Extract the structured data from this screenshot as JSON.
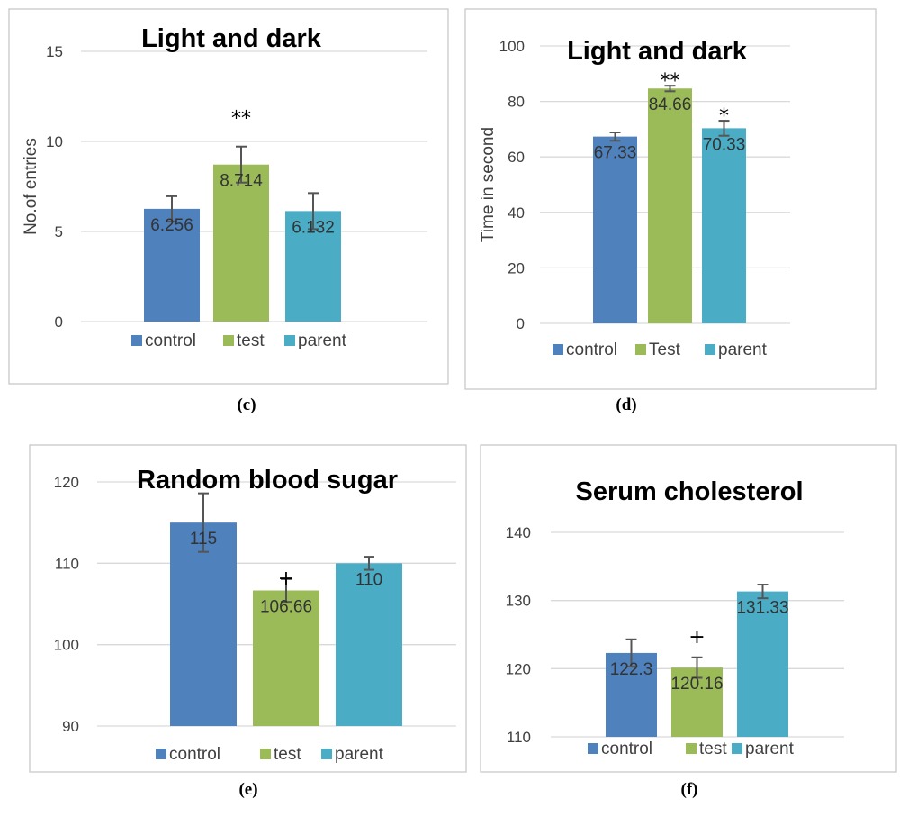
{
  "chart_data": [
    {
      "panel": "(c)",
      "type": "bar",
      "title": "Light and dark",
      "ylabel": "No.of entries",
      "xlabel": "",
      "ylim": [
        0,
        15
      ],
      "yticks": [
        "0",
        "5",
        "10",
        "15"
      ],
      "series": [
        {
          "name": "control",
          "color": "#4F81BD",
          "value": 6.256,
          "label": "6.256",
          "error": 0.7,
          "mark": ""
        },
        {
          "name": "test",
          "color": "#9BBB59",
          "value": 8.714,
          "label": "8.714",
          "error": 1.0,
          "mark": "**"
        },
        {
          "name": "parent",
          "color": "#4BACC6",
          "value": 6.132,
          "label": "6.132",
          "error": 1.0,
          "mark": ""
        }
      ],
      "grid": true,
      "legend_position": "bottom"
    },
    {
      "panel": "(d)",
      "type": "bar",
      "title": "Light and dark",
      "ylabel": "Time in second",
      "xlabel": "",
      "ylim": [
        0,
        100
      ],
      "yticks": [
        "0",
        "20",
        "40",
        "60",
        "80",
        "100"
      ],
      "series": [
        {
          "name": "control",
          "color": "#4F81BD",
          "value": 67.33,
          "label": "67.33",
          "error": 1.5,
          "mark": ""
        },
        {
          "name": "Test",
          "color": "#9BBB59",
          "value": 84.66,
          "label": "84.66",
          "error": 1.0,
          "mark": "**"
        },
        {
          "name": "parent",
          "color": "#4BACC6",
          "value": 70.33,
          "label": "70.33",
          "error": 2.7,
          "mark": "*"
        }
      ],
      "grid": true,
      "legend_position": "bottom"
    },
    {
      "panel": "(e)",
      "type": "bar",
      "title": "Random blood sugar",
      "ylabel": "",
      "xlabel": "",
      "ylim": [
        90,
        120
      ],
      "yticks": [
        "90",
        "100",
        "110",
        "120"
      ],
      "series": [
        {
          "name": "control",
          "color": "#4F81BD",
          "value": 115,
          "label": "115",
          "error": 3.6,
          "mark": ""
        },
        {
          "name": "test",
          "color": "#9BBB59",
          "value": 106.66,
          "label": "106.66",
          "error": 1.4,
          "mark": "+"
        },
        {
          "name": "parent",
          "color": "#4BACC6",
          "value": 110,
          "label": "110",
          "error": 0.8,
          "mark": ""
        }
      ],
      "grid": true,
      "legend_position": "bottom"
    },
    {
      "panel": "(f)",
      "type": "bar",
      "title": "Serum cholesterol",
      "ylabel": "",
      "xlabel": "",
      "ylim": [
        110,
        140
      ],
      "yticks": [
        "110",
        "120",
        "130",
        "140"
      ],
      "series": [
        {
          "name": "control",
          "color": "#4F81BD",
          "value": 122.3,
          "label": "122.3",
          "error": 2.0,
          "mark": ""
        },
        {
          "name": "test",
          "color": "#9BBB59",
          "value": 120.16,
          "label": "120.16",
          "error": 1.5,
          "mark": "+"
        },
        {
          "name": "parent",
          "color": "#4BACC6",
          "value": 131.33,
          "label": "131.33",
          "error": 1.0,
          "mark": ""
        }
      ],
      "grid": true,
      "legend_position": "bottom"
    }
  ]
}
